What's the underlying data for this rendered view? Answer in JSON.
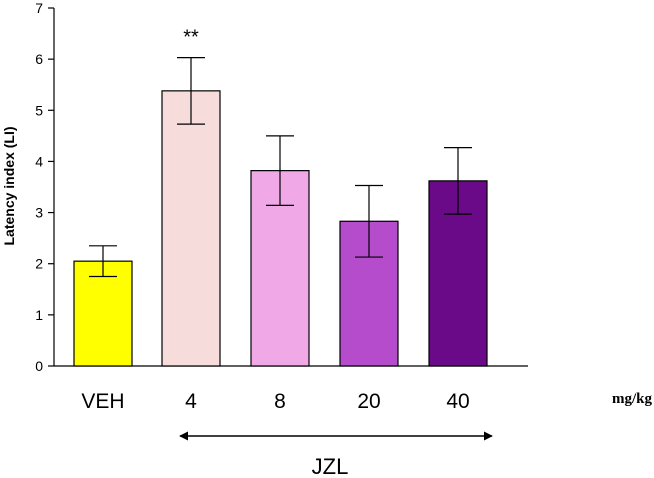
{
  "chart_data": {
    "type": "bar",
    "categories": [
      "VEH",
      "4",
      "8",
      "20",
      "40"
    ],
    "values": [
      2.05,
      5.38,
      3.82,
      2.83,
      3.62
    ],
    "errors": [
      0.3,
      0.65,
      0.68,
      0.7,
      0.65
    ],
    "colors": [
      "#ffff00",
      "#f7dcdc",
      "#f0a8e6",
      "#b44ccc",
      "#6a0a88"
    ],
    "significance": [
      "",
      "**",
      "",
      "",
      ""
    ],
    "ylabel": "Latency index (LI)",
    "xunit": "mg/kg",
    "group_label": "JZL",
    "group_range": [
      "4",
      "40"
    ],
    "ylim": [
      0,
      7
    ],
    "yticks": [
      0,
      1,
      2,
      3,
      4,
      5,
      6,
      7
    ],
    "grid": false,
    "legend": "none"
  }
}
